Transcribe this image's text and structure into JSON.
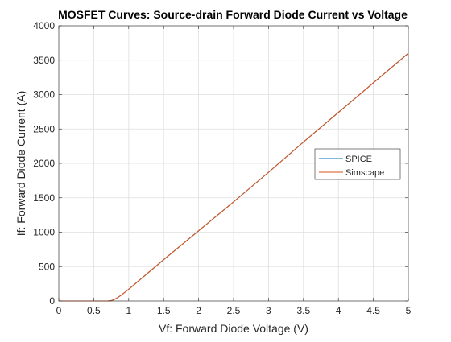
{
  "chart_data": {
    "type": "line",
    "title": "MOSFET Curves: Source-drain Forward Diode Current vs Voltage",
    "xlabel": "Vf: Forward Diode Voltage (V)",
    "ylabel": "If: Forward Diode Current (A)",
    "xlim": [
      0,
      5
    ],
    "ylim": [
      0,
      4000
    ],
    "xticks": [
      0,
      0.5,
      1,
      1.5,
      2,
      2.5,
      3,
      3.5,
      4,
      4.5,
      5
    ],
    "yticks": [
      0,
      500,
      1000,
      1500,
      2000,
      2500,
      3000,
      3500,
      4000
    ],
    "xtick_labels": [
      "0",
      "0.5",
      "1",
      "1.5",
      "2",
      "2.5",
      "3",
      "3.5",
      "4",
      "4.5",
      "5"
    ],
    "ytick_labels": [
      "0",
      "500",
      "1000",
      "1500",
      "2000",
      "2500",
      "3000",
      "3500",
      "4000"
    ],
    "grid": true,
    "legend_position": "east",
    "series": [
      {
        "name": "SPICE",
        "color": "#0072BD",
        "x": [
          0,
          0.5,
          0.7,
          0.75,
          0.8,
          0.85,
          0.9,
          0.95,
          1.0,
          1.5,
          2.0,
          2.5,
          3.0,
          3.5,
          4.0,
          4.5,
          5.0
        ],
        "y": [
          0,
          0,
          0,
          5,
          25,
          55,
          90,
          130,
          170,
          600,
          1020,
          1440,
          1870,
          2310,
          2740,
          3170,
          3600
        ]
      },
      {
        "name": "Simscape",
        "color": "#D95319",
        "x": [
          0,
          0.5,
          0.7,
          0.75,
          0.8,
          0.85,
          0.9,
          0.95,
          1.0,
          1.5,
          2.0,
          2.5,
          3.0,
          3.5,
          4.0,
          4.5,
          5.0
        ],
        "y": [
          0,
          0,
          0,
          5,
          25,
          55,
          90,
          130,
          170,
          600,
          1020,
          1440,
          1870,
          2310,
          2740,
          3170,
          3600
        ]
      }
    ]
  }
}
